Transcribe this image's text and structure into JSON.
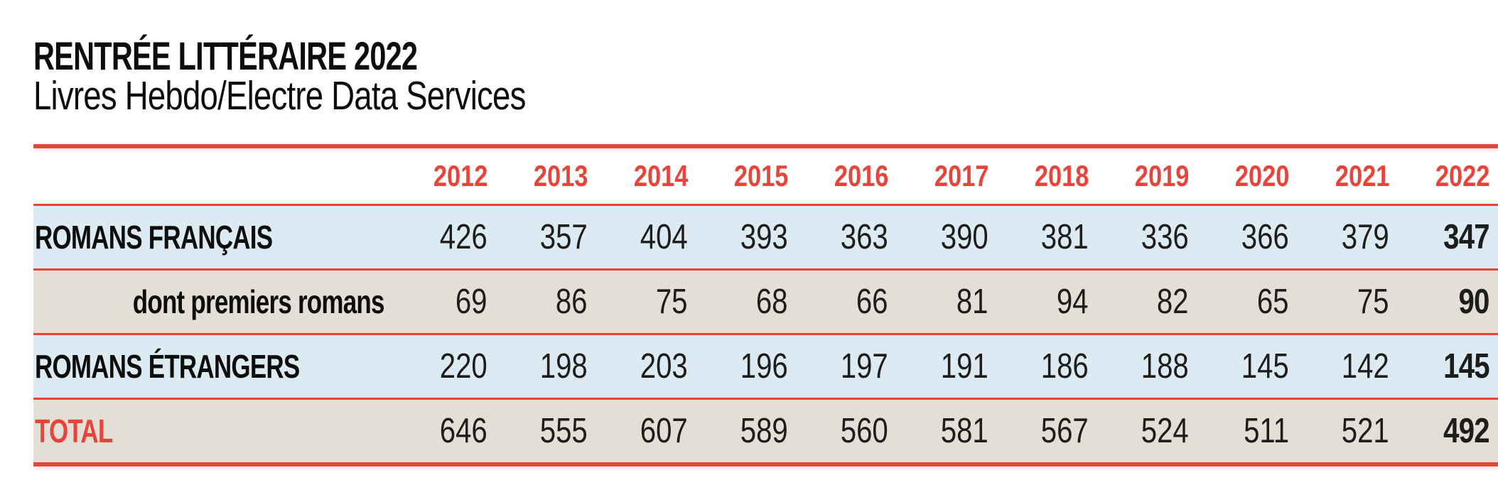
{
  "header": {
    "title": "RENTRÉE LITTÉRAIRE 2022",
    "subtitle": "Livres Hebdo/Electre Data Services"
  },
  "colors": {
    "accent": "#e8443a",
    "row_blue": "#dceaf3",
    "row_beige": "#e4dfd6",
    "text": "#1a1a18"
  },
  "chart_data": {
    "type": "table",
    "title": "RENTRÉE LITTÉRAIRE 2022",
    "subtitle": "Livres Hebdo/Electre Data Services",
    "columns": [
      "2012",
      "2013",
      "2014",
      "2015",
      "2016",
      "2017",
      "2018",
      "2019",
      "2020",
      "2021",
      "2022"
    ],
    "rows": [
      {
        "label": "ROMANS FRANÇAIS",
        "style": "main",
        "bg": "blue",
        "values": [
          426,
          357,
          404,
          393,
          363,
          390,
          381,
          336,
          366,
          379,
          347
        ]
      },
      {
        "label": "dont premiers romans",
        "style": "sub",
        "bg": "beige",
        "values": [
          69,
          86,
          75,
          68,
          66,
          81,
          94,
          82,
          65,
          75,
          90
        ]
      },
      {
        "label": "ROMANS ÉTRANGERS",
        "style": "main",
        "bg": "blue",
        "values": [
          220,
          198,
          203,
          196,
          197,
          191,
          186,
          188,
          145,
          142,
          145
        ]
      },
      {
        "label": "TOTAL",
        "style": "total",
        "bg": "beige",
        "values": [
          646,
          555,
          607,
          589,
          560,
          581,
          567,
          524,
          511,
          521,
          492
        ]
      }
    ],
    "layout_hints": {
      "last_column_bold": true,
      "year_header_color": "accent",
      "grid": "horizontal red rules only"
    }
  }
}
